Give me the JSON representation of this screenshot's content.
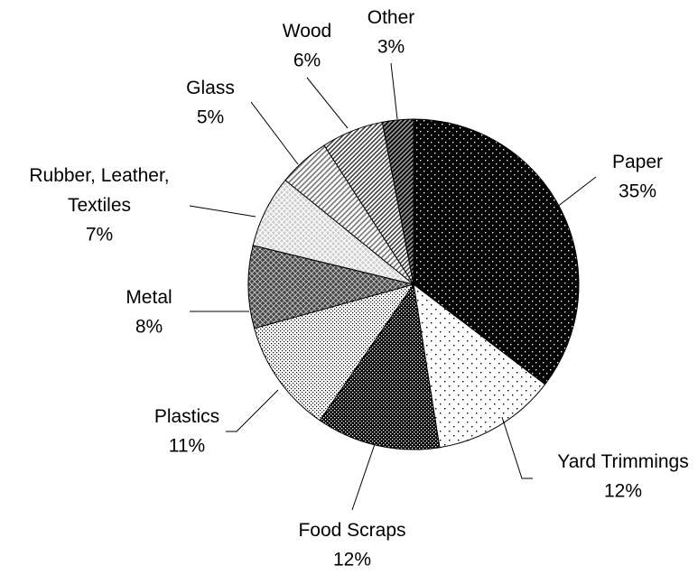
{
  "chart_data": {
    "type": "pie",
    "categories": [
      "Paper",
      "Yard Trimmings",
      "Food Scraps",
      "Plastics",
      "Metal",
      "Rubber, Leather, Textiles",
      "Glass",
      "Wood",
      "Other"
    ],
    "values": [
      35,
      12,
      12,
      11,
      8,
      7,
      5,
      6,
      3
    ],
    "value_labels": [
      "35%",
      "12%",
      "12%",
      "11%",
      "8%",
      "7%",
      "5%",
      "6%",
      "3%"
    ]
  }
}
